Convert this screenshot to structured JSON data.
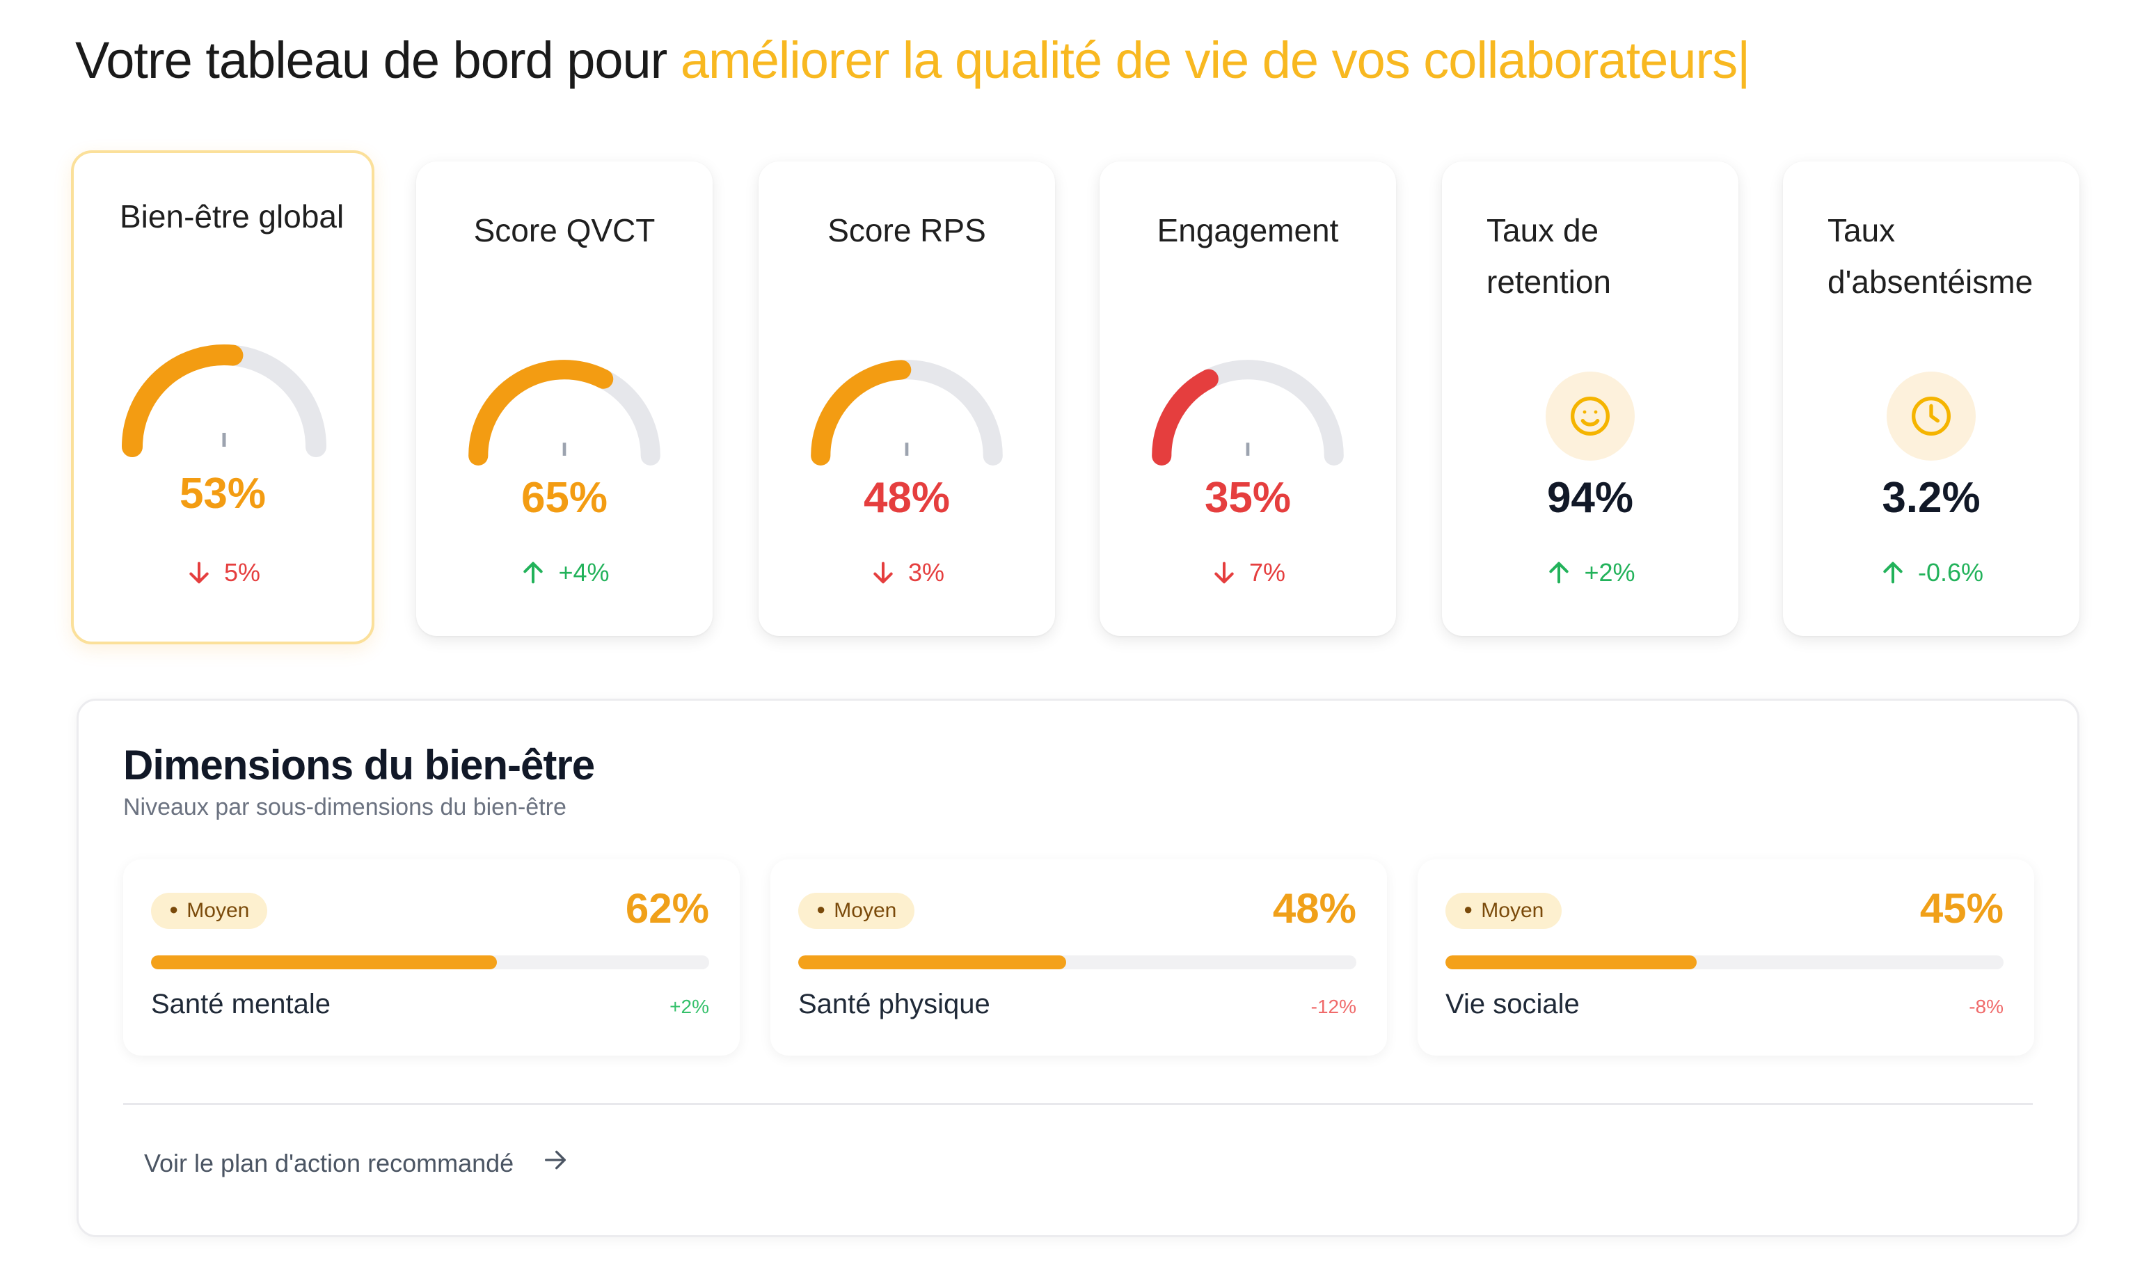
{
  "header": {
    "title_prefix": "Votre tableau de bord pour",
    "title_highlight": "améliorer la qualité de vie de vos collaborateurs",
    "cursor": "|",
    "highlight_color": "#f8b820"
  },
  "kpis": [
    {
      "title": "Bien-être global",
      "type": "gauge",
      "value": "53%",
      "value_num": 53,
      "delta": "5%",
      "trend": "down",
      "color": "#f39c12",
      "active": true
    },
    {
      "title": "Score QVCT",
      "type": "gauge",
      "value": "65%",
      "value_num": 65,
      "delta": "+4%",
      "trend": "up",
      "color": "#f39c12",
      "active": false
    },
    {
      "title": "Score RPS",
      "type": "gauge",
      "value": "48%",
      "value_num": 48,
      "delta": "3%",
      "trend": "down",
      "color": "#f39c12",
      "value_color": "#e53e3e",
      "active": false
    },
    {
      "title": "Engagement",
      "type": "gauge",
      "value": "35%",
      "value_num": 35,
      "delta": "7%",
      "trend": "down",
      "color": "#e53e3e",
      "active": false
    },
    {
      "title": "Taux de retention",
      "type": "icon",
      "icon": "smiley-icon",
      "value": "94%",
      "delta": "+2%",
      "trend": "up",
      "active": false
    },
    {
      "title": "Taux d'absentéisme",
      "type": "icon",
      "icon": "clock-icon",
      "value": "3.2%",
      "delta": "-0.6%",
      "trend": "up",
      "active": false
    }
  ],
  "dimensions": {
    "title": "Dimensions du bien-être",
    "subtitle": "Niveaux par sous-dimensions du bien-être",
    "items": [
      {
        "badge": "Moyen",
        "percent": "62%",
        "percent_num": 62,
        "label": "Santé mentale",
        "change": "+2%",
        "trend": "up"
      },
      {
        "badge": "Moyen",
        "percent": "48%",
        "percent_num": 48,
        "label": "Santé physique",
        "change": "-12%",
        "trend": "down"
      },
      {
        "badge": "Moyen",
        "percent": "45%",
        "percent_num": 45,
        "label": "Vie sociale",
        "change": "-8%",
        "trend": "down"
      }
    ],
    "action_link": "Voir le plan d'action recommandé"
  },
  "colors": {
    "orange": "#f39c12",
    "red": "#e53e3e",
    "green": "#22b25a",
    "gauge_track": "#e6e7eb"
  }
}
